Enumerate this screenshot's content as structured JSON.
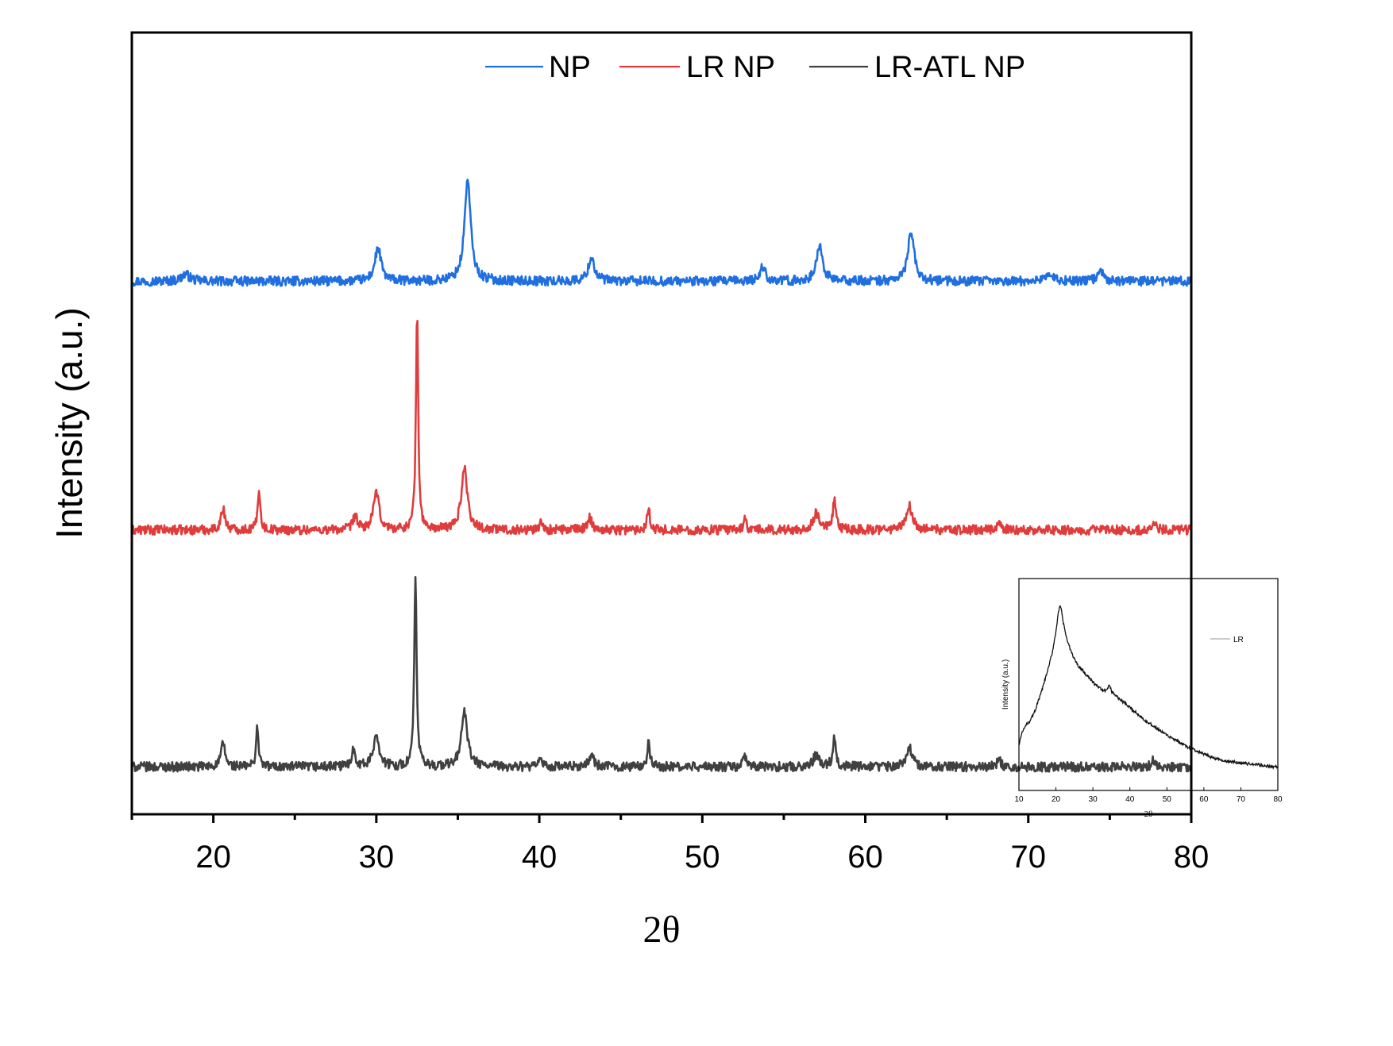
{
  "chart_data": [
    {
      "type": "line",
      "title": "",
      "xlabel": "2θ",
      "ylabel": "Intensity (a.u.)",
      "xlim": [
        15,
        80
      ],
      "ylim": [
        0,
        3.3
      ],
      "xticks": [
        20,
        30,
        40,
        50,
        60,
        70,
        80
      ],
      "y_ticks_shown": false,
      "grid": false,
      "legend": {
        "placement": "top-center",
        "entries": [
          "NP",
          "LR NP",
          "LR-ATL NP"
        ]
      },
      "series": [
        {
          "name": "NP",
          "color": "#1f6fe0",
          "baseline": 2.25,
          "noise": 0.02,
          "peaks": [
            [
              18.3,
              0.03,
              0.6
            ],
            [
              30.1,
              0.14,
              0.45
            ],
            [
              35.6,
              0.43,
              0.45
            ],
            [
              43.2,
              0.1,
              0.45
            ],
            [
              53.7,
              0.06,
              0.4
            ],
            [
              57.2,
              0.15,
              0.45
            ],
            [
              62.8,
              0.21,
              0.45
            ],
            [
              71.2,
              0.03,
              0.6
            ],
            [
              74.4,
              0.05,
              0.4
            ]
          ]
        },
        {
          "name": "LR NP",
          "color": "#e03c3c",
          "baseline": 1.2,
          "noise": 0.02,
          "peaks": [
            [
              20.6,
              0.09,
              0.3
            ],
            [
              22.8,
              0.18,
              0.18
            ],
            [
              28.7,
              0.06,
              0.3
            ],
            [
              30.0,
              0.16,
              0.4
            ],
            [
              32.5,
              0.91,
              0.17
            ],
            [
              35.4,
              0.26,
              0.45
            ],
            [
              40.1,
              0.04,
              0.2
            ],
            [
              43.1,
              0.05,
              0.35
            ],
            [
              46.7,
              0.1,
              0.2
            ],
            [
              52.6,
              0.05,
              0.2
            ],
            [
              57.0,
              0.07,
              0.45
            ],
            [
              58.1,
              0.12,
              0.22
            ],
            [
              62.7,
              0.1,
              0.45
            ],
            [
              68.2,
              0.03,
              0.3
            ],
            [
              77.7,
              0.03,
              0.3
            ]
          ]
        },
        {
          "name": "LR-ATL NP",
          "color": "#404040",
          "baseline": 0.2,
          "noise": 0.02,
          "peaks": [
            [
              20.6,
              0.1,
              0.3
            ],
            [
              22.7,
              0.17,
              0.18
            ],
            [
              28.6,
              0.07,
              0.3
            ],
            [
              30.0,
              0.14,
              0.4
            ],
            [
              32.4,
              0.81,
              0.17
            ],
            [
              35.4,
              0.23,
              0.45
            ],
            [
              40.1,
              0.04,
              0.2
            ],
            [
              43.2,
              0.05,
              0.35
            ],
            [
              46.7,
              0.1,
              0.2
            ],
            [
              52.6,
              0.05,
              0.2
            ],
            [
              57.0,
              0.05,
              0.45
            ],
            [
              58.1,
              0.13,
              0.22
            ],
            [
              62.7,
              0.08,
              0.45
            ],
            [
              68.2,
              0.03,
              0.3
            ],
            [
              77.7,
              0.03,
              0.3
            ]
          ]
        }
      ]
    },
    {
      "type": "line",
      "title": "",
      "xlabel": "2θ",
      "ylabel": "Intensity (a.u.)",
      "xlim": [
        10,
        80
      ],
      "ylim": [
        0,
        1
      ],
      "xticks": [
        10,
        20,
        30,
        40,
        50,
        60,
        70,
        80
      ],
      "y_ticks_shown": false,
      "legend": {
        "placement": "top-right",
        "entries": [
          "LR"
        ]
      },
      "series": [
        {
          "name": "LR",
          "color": "#111111",
          "x": [
            10,
            11,
            12,
            13,
            14,
            15,
            16,
            17,
            18,
            19,
            20,
            20.5,
            21,
            21.5,
            22,
            23,
            24,
            25,
            26,
            28,
            30,
            32,
            33,
            34,
            34.5,
            35,
            36,
            38,
            40,
            45,
            50,
            55,
            60,
            65,
            70,
            75,
            80
          ],
          "y": [
            0.22,
            0.28,
            0.31,
            0.33,
            0.36,
            0.41,
            0.46,
            0.52,
            0.58,
            0.65,
            0.75,
            0.82,
            0.87,
            0.85,
            0.79,
            0.71,
            0.66,
            0.62,
            0.59,
            0.55,
            0.51,
            0.48,
            0.47,
            0.48,
            0.5,
            0.47,
            0.45,
            0.42,
            0.39,
            0.32,
            0.26,
            0.21,
            0.17,
            0.14,
            0.13,
            0.12,
            0.11
          ]
        }
      ]
    }
  ]
}
